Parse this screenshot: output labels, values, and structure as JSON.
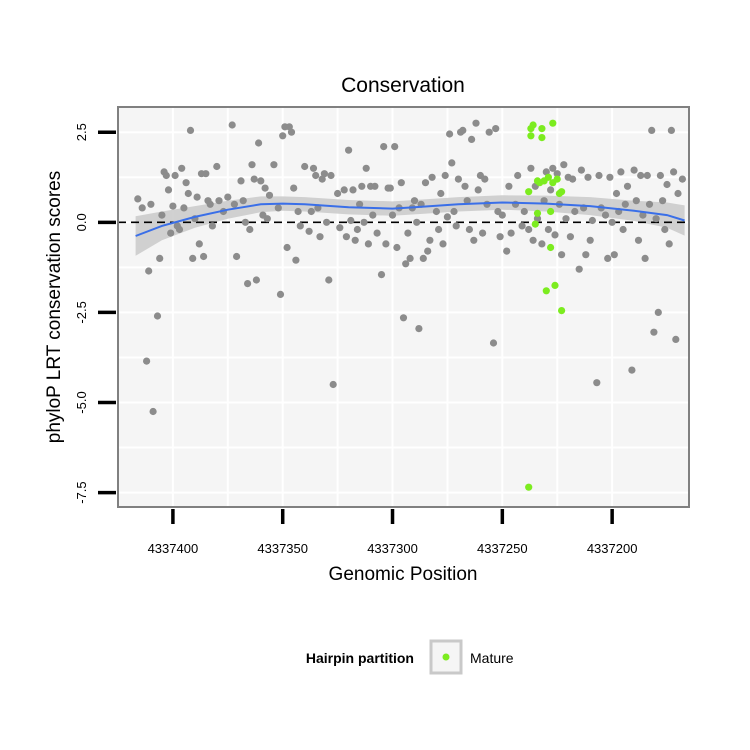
{
  "chart_data": {
    "type": "scatter",
    "title": "Conservation",
    "xlabel": "Genomic Position",
    "ylabel": "phyloP LRT conservation scores",
    "x_reversed": true,
    "xlim": [
      4337165,
      4337425
    ],
    "ylim": [
      -7.9,
      3.2
    ],
    "x_ticks": [
      4337400,
      4337350,
      4337300,
      4337250,
      4337200
    ],
    "x_tick_labels": [
      "4337400",
      "4337350",
      "4337300",
      "4337250",
      "4337200"
    ],
    "y_ticks": [
      2.5,
      0.0,
      -2.5,
      -5.0,
      -7.5
    ],
    "y_tick_labels": [
      "2.5",
      "0.0",
      "-2.5",
      "-5.0",
      "-7.5"
    ],
    "grid": true,
    "hline": {
      "y": 0,
      "style": "dashed",
      "color": "#000000"
    },
    "colors": {
      "background": "#f5f5f5",
      "grid": "#ffffff",
      "other": "#8c8c8c",
      "mature": "#7cec1f",
      "smooth": "#3a6fe8",
      "ribbon": "#c9c9c9",
      "frame": "#808080"
    },
    "legend": {
      "title": "Hairpin partition",
      "position": "bottom",
      "entries": [
        {
          "label": "Mature",
          "color": "#7cec1f"
        }
      ]
    },
    "series": [
      {
        "group": "other",
        "points": [
          [
            4337416,
            0.65
          ],
          [
            4337414,
            0.4
          ],
          [
            4337412,
            -3.85
          ],
          [
            4337411,
            -1.35
          ],
          [
            4337410,
            0.5
          ],
          [
            4337409,
            -5.25
          ],
          [
            4337407,
            -2.6
          ],
          [
            4337406,
            -1.0
          ],
          [
            4337405,
            0.2
          ],
          [
            4337404,
            1.4
          ],
          [
            4337403,
            1.3
          ],
          [
            4337402,
            0.9
          ],
          [
            4337401,
            -0.3
          ],
          [
            4337400,
            0.45
          ],
          [
            4337399,
            1.3
          ],
          [
            4337398,
            -0.1
          ],
          [
            4337397,
            -0.2
          ],
          [
            4337396,
            1.5
          ],
          [
            4337395,
            0.4
          ],
          [
            4337394,
            1.1
          ],
          [
            4337393,
            0.8
          ],
          [
            4337392,
            2.55
          ],
          [
            4337391,
            -1.0
          ],
          [
            4337390,
            0.1
          ],
          [
            4337389,
            0.7
          ],
          [
            4337388,
            -0.6
          ],
          [
            4337387,
            1.35
          ],
          [
            4337386,
            -0.95
          ],
          [
            4337385,
            1.35
          ],
          [
            4337384,
            0.6
          ],
          [
            4337383,
            0.5
          ],
          [
            4337382,
            -0.1
          ],
          [
            4337380,
            1.55
          ],
          [
            4337379,
            0.6
          ],
          [
            4337377,
            0.3
          ],
          [
            4337375,
            0.7
          ],
          [
            4337373,
            2.7
          ],
          [
            4337372,
            0.5
          ],
          [
            4337371,
            -0.95
          ],
          [
            4337369,
            1.15
          ],
          [
            4337368,
            0.6
          ],
          [
            4337367,
            0.0
          ],
          [
            4337366,
            -1.7
          ],
          [
            4337365,
            -0.2
          ],
          [
            4337364,
            1.6
          ],
          [
            4337363,
            1.2
          ],
          [
            4337362,
            -1.6
          ],
          [
            4337361,
            2.2
          ],
          [
            4337360,
            1.15
          ],
          [
            4337359,
            0.2
          ],
          [
            4337358,
            0.95
          ],
          [
            4337357,
            0.1
          ],
          [
            4337356,
            0.75
          ],
          [
            4337354,
            1.6
          ],
          [
            4337352,
            0.4
          ],
          [
            4337351,
            -2.0
          ],
          [
            4337350,
            2.4
          ],
          [
            4337349,
            2.65
          ],
          [
            4337348,
            -0.7
          ],
          [
            4337347,
            2.65
          ],
          [
            4337346,
            2.5
          ],
          [
            4337345,
            0.95
          ],
          [
            4337344,
            -1.05
          ],
          [
            4337343,
            0.3
          ],
          [
            4337342,
            -0.1
          ],
          [
            4337340,
            1.55
          ],
          [
            4337338,
            -0.25
          ],
          [
            4337337,
            0.3
          ],
          [
            4337336,
            1.5
          ],
          [
            4337335,
            1.3
          ],
          [
            4337334,
            0.4
          ],
          [
            4337333,
            -0.4
          ],
          [
            4337332,
            1.2
          ],
          [
            4337331,
            1.35
          ],
          [
            4337330,
            0.0
          ],
          [
            4337329,
            -1.6
          ],
          [
            4337328,
            1.3
          ],
          [
            4337327,
            -4.5
          ],
          [
            4337325,
            0.8
          ],
          [
            4337324,
            -0.15
          ],
          [
            4337322,
            0.9
          ],
          [
            4337321,
            -0.4
          ],
          [
            4337320,
            2.0
          ],
          [
            4337319,
            0.05
          ],
          [
            4337318,
            0.9
          ],
          [
            4337317,
            -0.5
          ],
          [
            4337316,
            -0.2
          ],
          [
            4337315,
            0.5
          ],
          [
            4337314,
            1.0
          ],
          [
            4337313,
            0.0
          ],
          [
            4337312,
            1.5
          ],
          [
            4337311,
            -0.6
          ],
          [
            4337310,
            1.0
          ],
          [
            4337309,
            0.2
          ],
          [
            4337308,
            1.0
          ],
          [
            4337307,
            -0.3
          ],
          [
            4337305,
            -1.45
          ],
          [
            4337304,
            2.1
          ],
          [
            4337303,
            -0.6
          ],
          [
            4337302,
            0.95
          ],
          [
            4337301,
            0.95
          ],
          [
            4337300,
            0.2
          ],
          [
            4337299,
            2.1
          ],
          [
            4337298,
            -0.7
          ],
          [
            4337297,
            0.4
          ],
          [
            4337296,
            1.1
          ],
          [
            4337295,
            -2.65
          ],
          [
            4337294,
            -1.15
          ],
          [
            4337293,
            -0.3
          ],
          [
            4337292,
            -1.0
          ],
          [
            4337291,
            0.4
          ],
          [
            4337290,
            0.6
          ],
          [
            4337289,
            0.0
          ],
          [
            4337288,
            -2.95
          ],
          [
            4337287,
            0.5
          ],
          [
            4337286,
            -1.0
          ],
          [
            4337285,
            1.1
          ],
          [
            4337284,
            -0.8
          ],
          [
            4337283,
            -0.5
          ],
          [
            4337282,
            1.25
          ],
          [
            4337280,
            0.3
          ],
          [
            4337279,
            -0.2
          ],
          [
            4337278,
            0.8
          ],
          [
            4337277,
            -0.6
          ],
          [
            4337276,
            1.3
          ],
          [
            4337275,
            0.15
          ],
          [
            4337274,
            2.45
          ],
          [
            4337273,
            1.65
          ],
          [
            4337272,
            0.3
          ],
          [
            4337271,
            -0.1
          ],
          [
            4337270,
            1.2
          ],
          [
            4337269,
            2.5
          ],
          [
            4337268,
            2.55
          ],
          [
            4337267,
            1.0
          ],
          [
            4337266,
            0.6
          ],
          [
            4337265,
            -0.2
          ],
          [
            4337264,
            2.3
          ],
          [
            4337263,
            -0.5
          ],
          [
            4337262,
            2.75
          ],
          [
            4337261,
            0.9
          ],
          [
            4337260,
            1.3
          ],
          [
            4337259,
            -0.3
          ],
          [
            4337258,
            1.2
          ],
          [
            4337257,
            0.5
          ],
          [
            4337256,
            2.5
          ],
          [
            4337254,
            -3.35
          ],
          [
            4337253,
            2.6
          ],
          [
            4337252,
            0.3
          ],
          [
            4337251,
            -0.4
          ],
          [
            4337250,
            0.2
          ],
          [
            4337248,
            -0.8
          ],
          [
            4337247,
            1.0
          ],
          [
            4337246,
            -0.3
          ],
          [
            4337244,
            0.5
          ],
          [
            4337243,
            1.3
          ],
          [
            4337241,
            -0.1
          ],
          [
            4337240,
            0.3
          ],
          [
            4337238,
            -0.2
          ],
          [
            4337237,
            1.5
          ],
          [
            4337236,
            -0.5
          ],
          [
            4337235,
            1.0
          ],
          [
            4337234,
            0.1
          ],
          [
            4337232,
            -0.6
          ],
          [
            4337231,
            0.6
          ],
          [
            4337230,
            1.4
          ],
          [
            4337229,
            -0.2
          ],
          [
            4337228,
            0.9
          ],
          [
            4337227,
            1.5
          ],
          [
            4337226,
            -0.35
          ],
          [
            4337225,
            1.35
          ],
          [
            4337224,
            0.5
          ],
          [
            4337223,
            -0.9
          ],
          [
            4337222,
            1.6
          ],
          [
            4337221,
            0.1
          ],
          [
            4337220,
            1.25
          ],
          [
            4337219,
            -0.4
          ],
          [
            4337218,
            1.2
          ],
          [
            4337217,
            0.3
          ],
          [
            4337215,
            -1.3
          ],
          [
            4337214,
            1.45
          ],
          [
            4337213,
            0.4
          ],
          [
            4337212,
            -0.9
          ],
          [
            4337211,
            1.25
          ],
          [
            4337210,
            -0.5
          ],
          [
            4337209,
            0.05
          ],
          [
            4337207,
            -4.45
          ],
          [
            4337206,
            1.3
          ],
          [
            4337205,
            0.4
          ],
          [
            4337203,
            0.2
          ],
          [
            4337202,
            -1.0
          ],
          [
            4337201,
            1.25
          ],
          [
            4337200,
            0.0
          ],
          [
            4337199,
            -0.9
          ],
          [
            4337198,
            0.8
          ],
          [
            4337197,
            0.3
          ],
          [
            4337196,
            1.4
          ],
          [
            4337195,
            -0.2
          ],
          [
            4337194,
            0.5
          ],
          [
            4337193,
            1.0
          ],
          [
            4337191,
            -4.1
          ],
          [
            4337190,
            1.45
          ],
          [
            4337189,
            0.6
          ],
          [
            4337188,
            -0.5
          ],
          [
            4337187,
            1.3
          ],
          [
            4337186,
            0.2
          ],
          [
            4337185,
            -1.0
          ],
          [
            4337184,
            1.3
          ],
          [
            4337183,
            0.5
          ],
          [
            4337182,
            2.55
          ],
          [
            4337181,
            -3.05
          ],
          [
            4337180,
            0.1
          ],
          [
            4337179,
            -2.5
          ],
          [
            4337178,
            1.3
          ],
          [
            4337177,
            0.6
          ],
          [
            4337176,
            -0.2
          ],
          [
            4337175,
            1.05
          ],
          [
            4337174,
            -0.6
          ],
          [
            4337173,
            2.55
          ],
          [
            4337172,
            1.4
          ],
          [
            4337171,
            -3.25
          ],
          [
            4337170,
            0.8
          ],
          [
            4337168,
            1.2
          ]
        ]
      },
      {
        "group": "mature",
        "name": "Mature",
        "points": [
          [
            4337238,
            -7.35
          ],
          [
            4337238,
            0.85
          ],
          [
            4337237,
            2.6
          ],
          [
            4337237,
            2.4
          ],
          [
            4337236,
            2.7
          ],
          [
            4337235,
            -0.05
          ],
          [
            4337234,
            1.15
          ],
          [
            4337234,
            0.25
          ],
          [
            4337233,
            1.1
          ],
          [
            4337232,
            2.6
          ],
          [
            4337232,
            2.35
          ],
          [
            4337231,
            1.15
          ],
          [
            4337230,
            -1.9
          ],
          [
            4337229,
            1.25
          ],
          [
            4337228,
            -0.7
          ],
          [
            4337228,
            0.3
          ],
          [
            4337227,
            2.75
          ],
          [
            4337227,
            1.1
          ],
          [
            4337226,
            -1.75
          ],
          [
            4337225,
            1.2
          ],
          [
            4337224,
            0.8
          ],
          [
            4337223,
            -2.45
          ],
          [
            4337223,
            0.85
          ]
        ]
      }
    ],
    "smooth": {
      "x": [
        4337417,
        4337405,
        4337390,
        4337375,
        4337360,
        4337350,
        4337340,
        4337320,
        4337300,
        4337290,
        4337270,
        4337250,
        4337230,
        4337210,
        4337190,
        4337175,
        4337167
      ],
      "y": [
        -0.38,
        -0.1,
        0.15,
        0.35,
        0.5,
        0.52,
        0.5,
        0.42,
        0.38,
        0.42,
        0.5,
        0.55,
        0.52,
        0.45,
        0.32,
        0.2,
        0.05
      ],
      "se": [
        0.55,
        0.4,
        0.3,
        0.25,
        0.22,
        0.2,
        0.2,
        0.2,
        0.2,
        0.2,
        0.2,
        0.2,
        0.22,
        0.25,
        0.28,
        0.35,
        0.42
      ]
    }
  }
}
